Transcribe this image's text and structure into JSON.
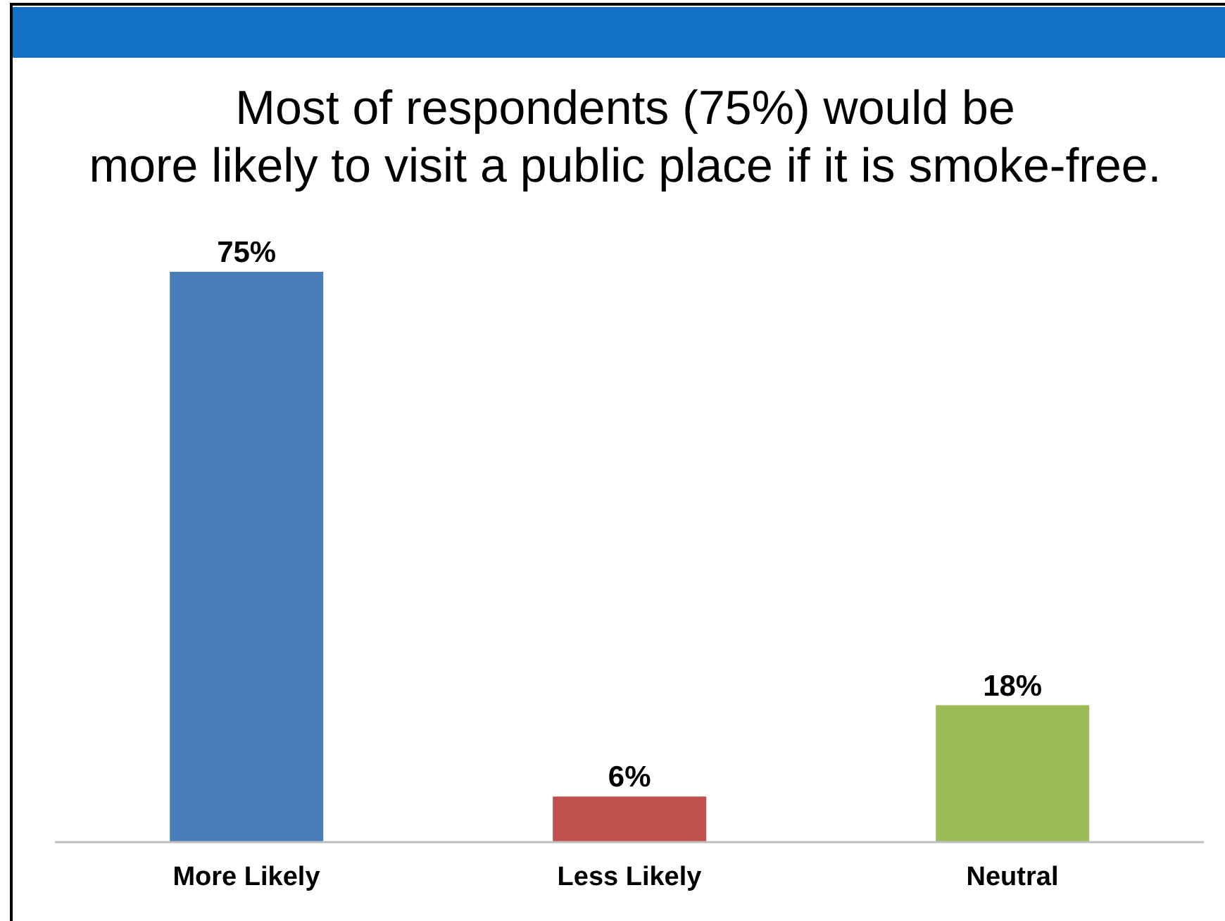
{
  "chart_data": {
    "type": "bar",
    "title": "Most of respondents (75%) would be\nmore likely to visit a public place if it is smoke-free.",
    "categories": [
      "More Likely",
      "Less Likely",
      "Neutral"
    ],
    "values": [
      75,
      6,
      18
    ],
    "colors": [
      "#4a7ebb",
      "#c0504d",
      "#9bbb59"
    ],
    "value_labels": [
      "75%",
      "6%",
      "18%"
    ]
  }
}
